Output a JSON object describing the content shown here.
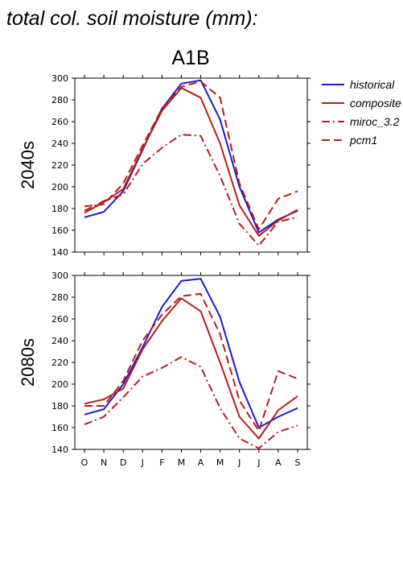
{
  "figure": {
    "supertitle": "total col. soil moisture (mm):",
    "scenario_title": "A1B"
  },
  "legend": [
    {
      "label": "historical",
      "color": "#1a1acc",
      "dash": "solid"
    },
    {
      "label": "composite",
      "color": "#b81c1c",
      "dash": "solid"
    },
    {
      "label": "miroc_3.2",
      "color": "#b81c1c",
      "dash": "dashdot"
    },
    {
      "label": "pcm1",
      "color": "#b81c1c",
      "dash": "dash"
    }
  ],
  "chart_data": [
    {
      "type": "line",
      "title": "2040s",
      "xlabel": "",
      "ylabel": "",
      "categories": [
        "O",
        "N",
        "D",
        "J",
        "F",
        "M",
        "A",
        "M",
        "J",
        "J",
        "A",
        "S"
      ],
      "ylim": [
        140,
        300
      ],
      "yticks": [
        140,
        160,
        180,
        200,
        220,
        240,
        260,
        280,
        300
      ],
      "series": [
        {
          "name": "historical",
          "values": [
            172,
            177,
            196,
            234,
            272,
            295,
            298,
            262,
            200,
            158,
            170,
            178
          ]
        },
        {
          "name": "composite",
          "values": [
            176,
            186,
            198,
            235,
            270,
            291,
            282,
            240,
            183,
            155,
            169,
            179
          ]
        },
        {
          "name": "miroc_3.2",
          "values": [
            178,
            187,
            193,
            221,
            236,
            248,
            247,
            210,
            166,
            146,
            168,
            172
          ]
        },
        {
          "name": "pcm1",
          "values": [
            182,
            184,
            203,
            238,
            272,
            292,
            297,
            282,
            203,
            161,
            189,
            196
          ]
        }
      ]
    },
    {
      "type": "line",
      "title": "2080s",
      "xlabel": "",
      "ylabel": "",
      "categories": [
        "O",
        "N",
        "D",
        "J",
        "F",
        "M",
        "A",
        "M",
        "J",
        "J",
        "A",
        "S"
      ],
      "ylim": [
        140,
        300
      ],
      "yticks": [
        140,
        160,
        180,
        200,
        220,
        240,
        260,
        280,
        300
      ],
      "series": [
        {
          "name": "historical",
          "values": [
            172,
            177,
            200,
            234,
            271,
            295,
            297,
            262,
            202,
            160,
            170,
            178
          ]
        },
        {
          "name": "composite",
          "values": [
            182,
            186,
            196,
            232,
            258,
            279,
            267,
            220,
            170,
            150,
            176,
            189
          ]
        },
        {
          "name": "miroc_3.2",
          "values": [
            163,
            170,
            188,
            207,
            215,
            225,
            216,
            178,
            150,
            141,
            156,
            162
          ]
        },
        {
          "name": "pcm1",
          "values": [
            180,
            180,
            203,
            240,
            264,
            281,
            283,
            246,
            185,
            157,
            212,
            205
          ]
        }
      ]
    }
  ]
}
